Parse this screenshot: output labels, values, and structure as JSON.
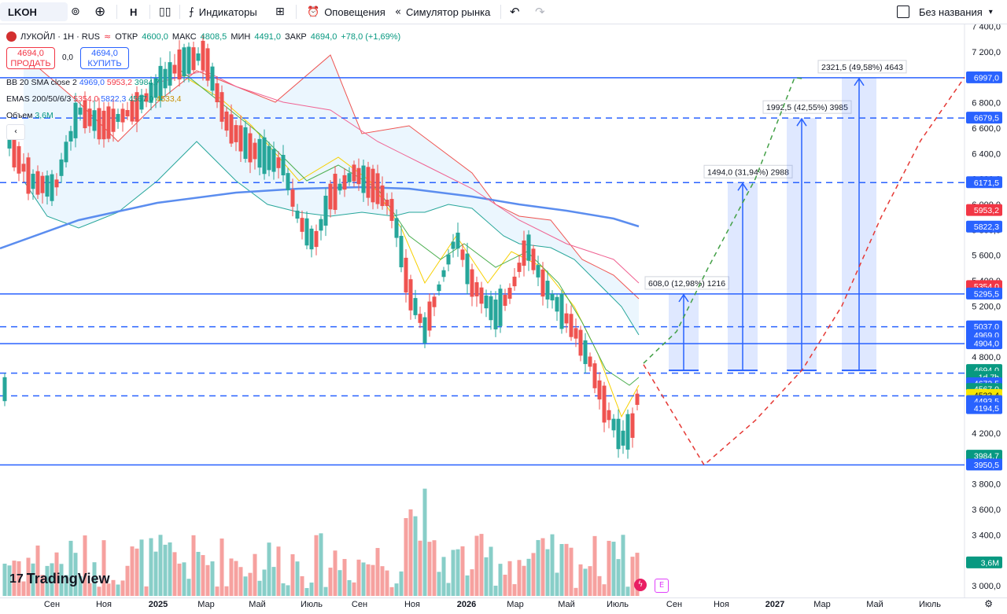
{
  "toolbar": {
    "symbol": "LKOH",
    "interval": "Н",
    "indicators_label": "Индикаторы",
    "alerts_label": "Оповещения",
    "replay_label": "Симулятор рынка",
    "layout_name": "Без названия"
  },
  "legend": {
    "title": "ЛУКОЙЛ · 1Н · RUS",
    "open_label": "ОТКР",
    "open": "4600,0",
    "high_label": "МАКС",
    "high": "4808,5",
    "low_label": "МИН",
    "low": "4491,0",
    "close_label": "ЗАКР",
    "close": "4694,0",
    "change": "+78,0 (+1,69%)"
  },
  "trade": {
    "sell_price": "4694,0",
    "sell_label": "ПРОДАТЬ",
    "spread": "0,0",
    "buy_price": "4694,0",
    "buy_label": "КУПИТЬ"
  },
  "indicators": {
    "bb": {
      "name": "BB 20 SMA close 2",
      "v1": "4969,0",
      "v2": "5953,2",
      "v3": "3984,7"
    },
    "emas": {
      "name": "EMAS 200/50/6/3",
      "v1": "5354,0",
      "v2": "5822,3",
      "v3": "4567,0",
      "v4": "4533,4"
    },
    "volume": {
      "name": "Объем",
      "v1": "3,6M"
    }
  },
  "price_axis_ticks": [
    "7 400,0",
    "7 200,0",
    "7 000,0",
    "6 800,0",
    "6 600,0",
    "6 400,0",
    "6 200,0",
    "6 000,0",
    "5 800,0",
    "5 600,0",
    "5 400,0",
    "5 200,0",
    "5 000,0",
    "4 800,0",
    "4 600,0",
    "4 400,0",
    "4 200,0",
    "4 000,0",
    "3 800,0",
    "3 600,0",
    "3 400,0",
    "3 200,0",
    "3 000,0"
  ],
  "price_badges": [
    {
      "text": "6997,0",
      "color": "#2962ff",
      "price": 6997
    },
    {
      "text": "6679,5",
      "color": "#2962ff",
      "price": 6679.5
    },
    {
      "text": "6171,5",
      "color": "#2962ff",
      "price": 6171.5
    },
    {
      "text": "5953,2",
      "color": "#f23645",
      "price": 5953.2
    },
    {
      "text": "5822,3",
      "color": "#2962ff",
      "price": 5822.3
    },
    {
      "text": "5354,0",
      "color": "#f23645",
      "price": 5354
    },
    {
      "text": "5295,5",
      "color": "#2962ff",
      "price": 5295.5
    },
    {
      "text": "5037,0",
      "color": "#2962ff",
      "price": 5037
    },
    {
      "text": "4969,0",
      "color": "#2962ff",
      "price": 4969
    },
    {
      "text": "4904,0",
      "color": "#2962ff",
      "price": 4904
    },
    {
      "text": "4694,0",
      "color": "#089981",
      "price": 4694
    },
    {
      "text": "1d 7h",
      "color": "#089981",
      "price": 4640
    },
    {
      "text": "4672,5",
      "color": "#2962ff",
      "price": 4590
    },
    {
      "text": "4567,0",
      "color": "#089981",
      "price": 4545
    },
    {
      "text": "4533,4",
      "color": "#f7e600",
      "price": 4498,
      "dark": true
    },
    {
      "text": "4493,5",
      "color": "#2962ff",
      "price": 4450
    },
    {
      "text": "4194,5",
      "color": "#2962ff",
      "price": 4394
    },
    {
      "text": "3984,7",
      "color": "#089981",
      "price": 4020
    },
    {
      "text": "3950,5",
      "color": "#2962ff",
      "price": 3950.5
    },
    {
      "text": "3,6M",
      "color": "#089981",
      "price": 3180
    }
  ],
  "levels": [
    {
      "price": 6997,
      "style": "solid"
    },
    {
      "price": 6679.5,
      "style": "dashed"
    },
    {
      "price": 6171.5,
      "style": "dashed"
    },
    {
      "price": 5295.5,
      "style": "solid"
    },
    {
      "price": 5037,
      "style": "dashed"
    },
    {
      "price": 4904,
      "style": "solid"
    },
    {
      "price": 4672.5,
      "style": "dashed"
    },
    {
      "price": 4493.5,
      "style": "dashed"
    },
    {
      "price": 3950.5,
      "style": "solid"
    }
  ],
  "targets": [
    {
      "label": "608,0 (12,98%) 1216",
      "top": 5295.5
    },
    {
      "label": "1494,0 (31,94%) 2988",
      "top": 6171.5
    },
    {
      "label": "1992,5 (42,55%) 3985",
      "top": 6679.5
    },
    {
      "label": "2321,5 (49,58%) 4643",
      "top": 6997
    }
  ],
  "x_labels": [
    {
      "t": "Сен",
      "b": false
    },
    {
      "t": "Ноя",
      "b": false
    },
    {
      "t": "2025",
      "b": true
    },
    {
      "t": "Мар",
      "b": false
    },
    {
      "t": "Май",
      "b": false
    },
    {
      "t": "Июль",
      "b": false
    },
    {
      "t": "Сен",
      "b": false
    },
    {
      "t": "Ноя",
      "b": false
    },
    {
      "t": "2026",
      "b": true
    },
    {
      "t": "Мар",
      "b": false
    },
    {
      "t": "Май",
      "b": false
    },
    {
      "t": "Июль",
      "b": false
    },
    {
      "t": "Сен",
      "b": false
    },
    {
      "t": "Ноя",
      "b": false
    },
    {
      "t": "2027",
      "b": true
    },
    {
      "t": "Мар",
      "b": false
    },
    {
      "t": "Май",
      "b": false
    },
    {
      "t": "Июль",
      "b": false
    }
  ],
  "logo": "TradingView",
  "colors": {
    "up": "#26a69a",
    "down": "#ef5350",
    "accent": "#2962ff",
    "bb": "#f06292",
    "ema200": "#5b8def"
  }
}
